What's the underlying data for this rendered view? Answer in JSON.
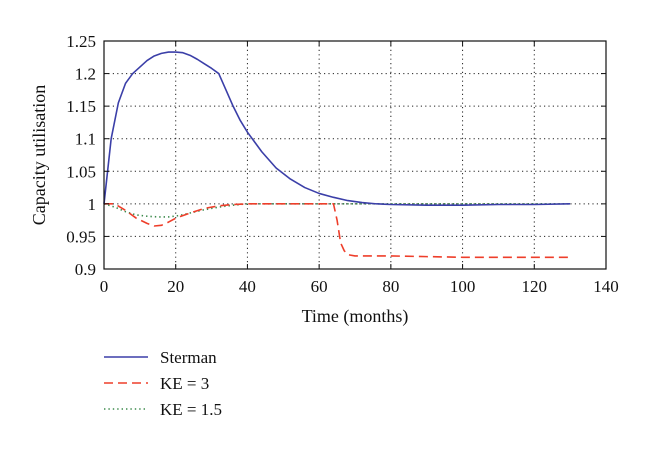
{
  "chart_data": {
    "type": "line",
    "title": "",
    "xlabel": "Time (months)",
    "ylabel": "Capacity utilisation",
    "xlim": [
      0,
      140
    ],
    "ylim": [
      0.9,
      1.25
    ],
    "xticks": [
      0,
      20,
      40,
      60,
      80,
      100,
      120,
      140
    ],
    "yticks": [
      0.9,
      0.95,
      1,
      1.05,
      1.1,
      1.15,
      1.2,
      1.25
    ],
    "xtick_labels": [
      "0",
      "20",
      "40",
      "60",
      "80",
      "100",
      "120",
      "140"
    ],
    "ytick_labels": [
      "0.9",
      "0.95",
      "1",
      "1.05",
      "1.1",
      "1.15",
      "1.2",
      "1.25"
    ],
    "grid": true,
    "legend_position": "below",
    "series": [
      {
        "name": "Sterman",
        "color": "#3b3fa8",
        "style": "solid",
        "x": [
          0,
          2,
          4,
          6,
          8,
          10,
          12,
          14,
          16,
          18,
          20,
          22,
          24,
          26,
          28,
          30,
          32,
          34,
          36,
          38,
          40,
          44,
          48,
          52,
          56,
          60,
          64,
          68,
          72,
          76,
          80,
          90,
          100,
          110,
          120,
          130
        ],
        "y": [
          1.0,
          1.1,
          1.155,
          1.185,
          1.2,
          1.21,
          1.22,
          1.227,
          1.231,
          1.233,
          1.233,
          1.232,
          1.228,
          1.222,
          1.215,
          1.208,
          1.2,
          1.175,
          1.15,
          1.128,
          1.11,
          1.08,
          1.055,
          1.038,
          1.025,
          1.016,
          1.01,
          1.005,
          1.002,
          1.0,
          0.999,
          0.998,
          0.998,
          0.999,
          0.999,
          1.0
        ]
      },
      {
        "name": "KE = 3",
        "color": "#ee3e2a",
        "style": "dashed",
        "x": [
          0,
          3,
          6,
          9,
          12,
          14,
          16,
          18,
          20,
          24,
          28,
          32,
          36,
          40,
          50,
          60,
          64,
          65,
          66,
          67,
          68,
          70,
          75,
          80,
          90,
          100,
          110,
          120,
          130
        ],
        "y": [
          1.0,
          1.0,
          0.99,
          0.978,
          0.97,
          0.966,
          0.967,
          0.972,
          0.978,
          0.986,
          0.993,
          0.997,
          0.999,
          1.0,
          1.0,
          1.0,
          1.0,
          0.975,
          0.94,
          0.928,
          0.922,
          0.92,
          0.92,
          0.92,
          0.919,
          0.918,
          0.918,
          0.918,
          0.918
        ]
      },
      {
        "name": "KE = 1.5",
        "color": "#3c8a4c",
        "style": "dotted",
        "x": [
          0,
          3,
          6,
          9,
          12,
          15,
          18,
          21,
          24,
          28,
          32,
          36,
          40,
          50,
          60,
          70,
          80,
          100,
          130
        ],
        "y": [
          1.0,
          0.995,
          0.988,
          0.983,
          0.981,
          0.98,
          0.98,
          0.982,
          0.986,
          0.991,
          0.995,
          0.998,
          1.0,
          1.0,
          1.0,
          1.0,
          1.0,
          1.0,
          1.0
        ]
      }
    ]
  }
}
